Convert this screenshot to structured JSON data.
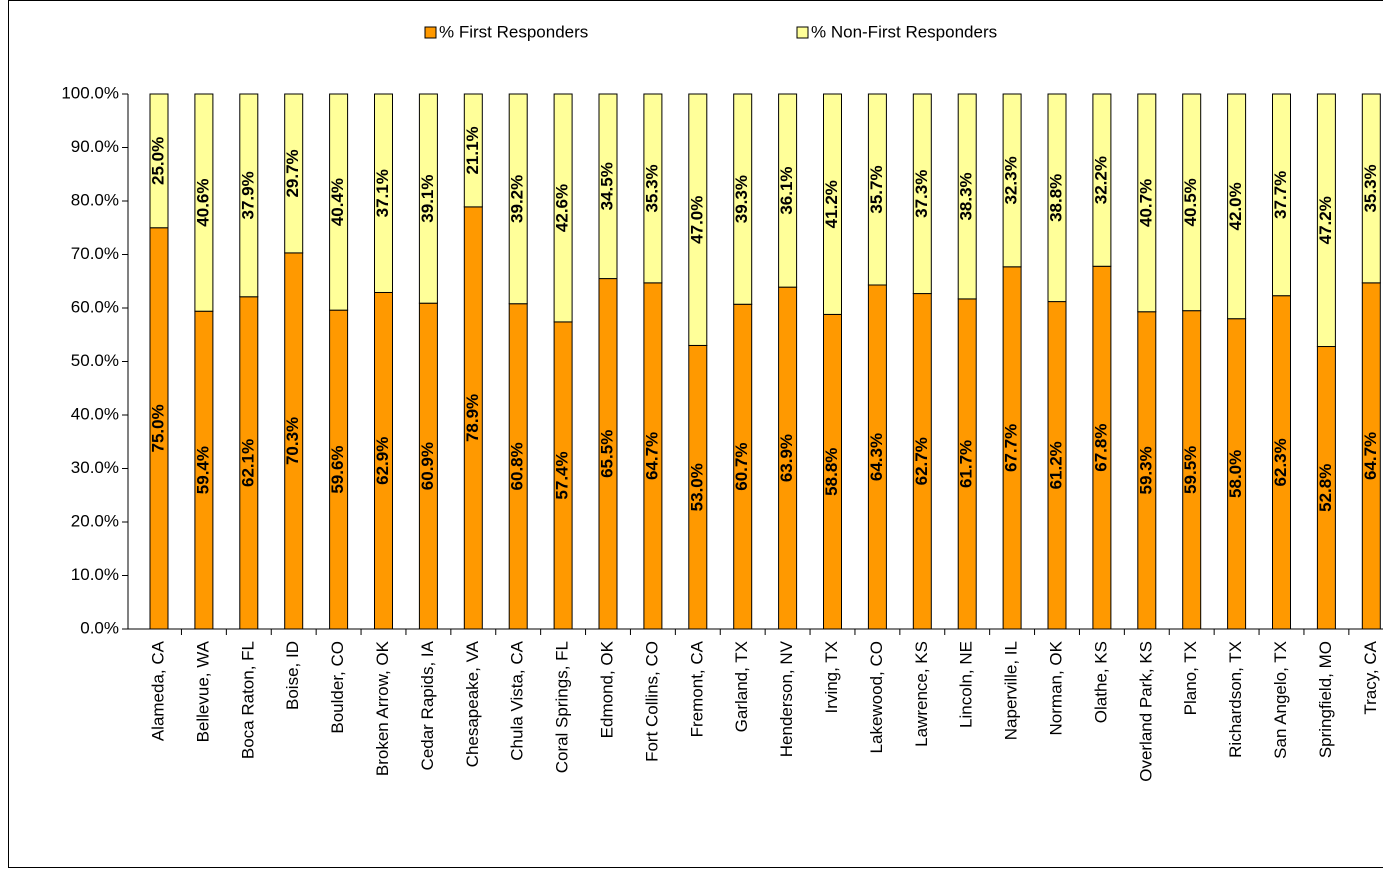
{
  "chart_data": {
    "type": "stacked_bar",
    "categories": [
      "Alameda, CA",
      "Bellevue, WA",
      "Boca Raton, FL",
      "Boise, ID",
      "Boulder, CO",
      "Broken Arrow, OK",
      "Cedar Rapids, IA",
      "Chesapeake, VA",
      "Chula Vista, CA",
      "Coral Springs, FL",
      "Edmond, OK",
      "Fort Collins, CO",
      "Fremont, CA",
      "Garland, TX",
      "Henderson, NV",
      "Irving, TX",
      "Lakewood, CO",
      "Lawrence, KS",
      "Lincoln, NE",
      "Naperville, IL",
      "Norman, OK",
      "Olathe, KS",
      "Overland Park, KS",
      "Plano, TX",
      "Richardson, TX",
      "San Angelo, TX",
      "Springfield, MO",
      "Tracy, CA"
    ],
    "series": [
      {
        "name": "% First Responders",
        "color": "#ff9900",
        "values": [
          75.0,
          59.4,
          62.1,
          70.3,
          59.6,
          62.9,
          60.9,
          78.9,
          60.8,
          57.4,
          65.5,
          64.7,
          53.0,
          60.7,
          63.9,
          58.8,
          64.3,
          62.7,
          61.7,
          67.7,
          61.2,
          67.8,
          59.3,
          59.5,
          58.0,
          62.3,
          52.8,
          64.7
        ],
        "value_labels": [
          "75.0%",
          "59.4%",
          "62.1%",
          "70.3%",
          "59.6%",
          "62.9%",
          "60.9%",
          "78.9%",
          "60.8%",
          "57.4%",
          "65.5%",
          "64.7%",
          "53.0%",
          "60.7%",
          "63.9%",
          "58.8%",
          "64.3%",
          "62.7%",
          "61.7%",
          "67.7%",
          "61.2%",
          "67.8%",
          "59.3%",
          "59.5%",
          "58.0%",
          "62.3%",
          "52.8%",
          "64.7%"
        ]
      },
      {
        "name": "% Non-First Responders",
        "color": "#ffff99",
        "values": [
          25.0,
          40.6,
          37.9,
          29.7,
          40.4,
          37.1,
          39.1,
          21.1,
          39.2,
          42.6,
          34.5,
          35.3,
          47.0,
          39.3,
          36.1,
          41.2,
          35.7,
          37.3,
          38.3,
          32.3,
          38.8,
          32.2,
          40.7,
          40.5,
          42.0,
          37.7,
          47.2,
          35.3
        ],
        "value_labels": [
          "25.0%",
          "40.6%",
          "37.9%",
          "29.7%",
          "40.4%",
          "37.1%",
          "39.1%",
          "21.1%",
          "39.2%",
          "42.6%",
          "34.5%",
          "35.3%",
          "47.0%",
          "39.3%",
          "36.1%",
          "41.2%",
          "35.7%",
          "37.3%",
          "38.3%",
          "32.3%",
          "38.8%",
          "32.2%",
          "40.7%",
          "40.5%",
          "42.0%",
          "37.7%",
          "47.2%",
          "35.3%"
        ]
      }
    ],
    "ylim": [
      0,
      100
    ],
    "yticks": [
      {
        "value": 0,
        "label": "0.0%"
      },
      {
        "value": 10,
        "label": "10.0%"
      },
      {
        "value": 20,
        "label": "20.0%"
      },
      {
        "value": 30,
        "label": "30.0%"
      },
      {
        "value": 40,
        "label": "40.0%"
      },
      {
        "value": 50,
        "label": "50.0%"
      },
      {
        "value": 60,
        "label": "60.0%"
      },
      {
        "value": 70,
        "label": "70.0%"
      },
      {
        "value": 80,
        "label": "80.0%"
      },
      {
        "value": 90,
        "label": "90.0%"
      },
      {
        "value": 100,
        "label": "100.0%"
      }
    ],
    "grid": false,
    "legend": "top"
  }
}
